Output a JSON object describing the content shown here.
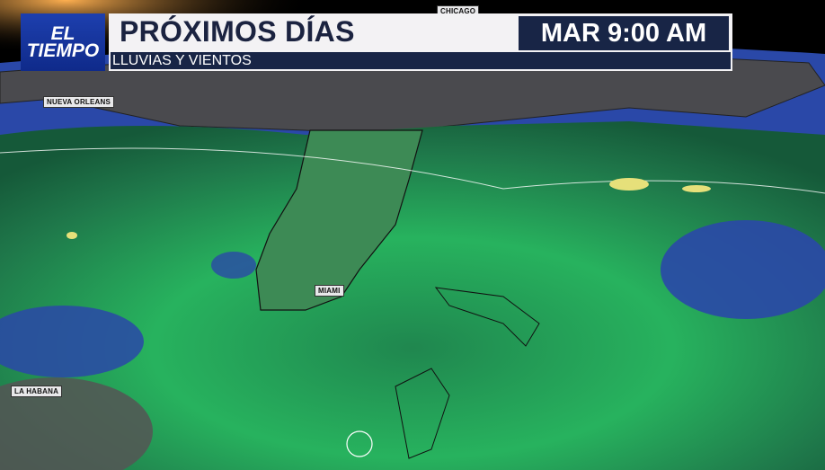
{
  "header": {
    "logo_line1": "EL",
    "logo_line2": "TIEMPO",
    "title": "PRÓXIMOS DÍAS",
    "subtitle": "LLUVIAS Y VIENTOS",
    "time": "MAR 9:00 AM"
  },
  "map_labels": {
    "chicago": "CHICAGO",
    "new_orleans": "NUEVA ORLEANS",
    "miami": "MIAMI",
    "havana": "LA HABANA"
  },
  "colors": {
    "rain_light": "#2fd267",
    "rain_dark": "#1a6b3c",
    "ocean": "#2a48a8",
    "land": "#4a4a4e",
    "banner_navy": "#182546",
    "logo_blue": "#1d3fae"
  }
}
